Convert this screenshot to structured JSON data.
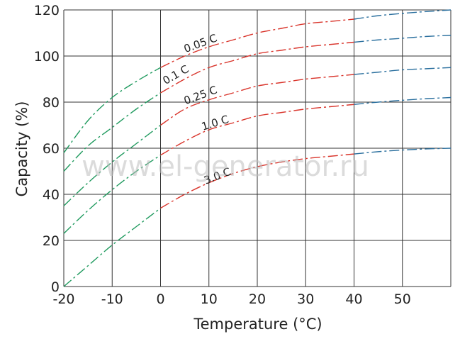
{
  "chart_data": {
    "type": "line",
    "title": "",
    "xlabel": "Temperature (°C)",
    "ylabel": "Capacity (%)",
    "xlim": [
      -20,
      60
    ],
    "ylim": [
      0,
      120
    ],
    "x_ticks": [
      "-20",
      "-10",
      "0",
      "10",
      "20",
      "30",
      "40",
      "50"
    ],
    "y_ticks": [
      "0",
      "20",
      "40",
      "60",
      "80",
      "100",
      "120"
    ],
    "grid": true,
    "line_style": "dash-dot",
    "segment_colors": {
      "low_temperature": "#1f9a5e",
      "mid_temperature": "#d9342b",
      "high_temperature": "#2a6f9e"
    },
    "segment_ranges_celsius": {
      "low_temperature": [
        -20,
        0
      ],
      "mid_temperature": [
        0,
        40
      ],
      "high_temperature": [
        40,
        60
      ]
    },
    "series": [
      {
        "name": "0.05 C",
        "x": [
          -20,
          -15,
          -10,
          -5,
          0,
          5,
          10,
          15,
          20,
          25,
          30,
          35,
          40,
          45,
          50,
          55,
          60
        ],
        "y": [
          58,
          72,
          82,
          89,
          95,
          100,
          104,
          107,
          110,
          112,
          114,
          115,
          116,
          117.5,
          118.5,
          119.3,
          120
        ]
      },
      {
        "name": "0.1 C",
        "x": [
          -20,
          -15,
          -10,
          -5,
          0,
          5,
          10,
          15,
          20,
          25,
          30,
          35,
          40,
          45,
          50,
          55,
          60
        ],
        "y": [
          50,
          61,
          69,
          77,
          84,
          90,
          95,
          98,
          101,
          102.5,
          104,
          105,
          106,
          107,
          107.7,
          108.5,
          109
        ]
      },
      {
        "name": "0.25 C",
        "x": [
          -20,
          -15,
          -10,
          -5,
          0,
          5,
          10,
          15,
          20,
          25,
          30,
          35,
          40,
          45,
          50,
          55,
          60
        ],
        "y": [
          35,
          45,
          54,
          62,
          70,
          77,
          81,
          84,
          87,
          88.5,
          90,
          91,
          92,
          93,
          94,
          94.5,
          95
        ]
      },
      {
        "name": "1.0 C",
        "x": [
          -20,
          -15,
          -10,
          -5,
          0,
          5,
          10,
          15,
          20,
          25,
          30,
          35,
          40,
          45,
          50,
          55,
          60
        ],
        "y": [
          23,
          33,
          42,
          50,
          57,
          63,
          68,
          71,
          74,
          75.5,
          77,
          78,
          79,
          80,
          80.8,
          81.5,
          82
        ]
      },
      {
        "name": "3.0 C",
        "x": [
          -20,
          -15,
          -10,
          -5,
          0,
          5,
          10,
          15,
          20,
          25,
          30,
          35,
          40,
          45,
          50,
          55,
          60
        ],
        "y": [
          0,
          9,
          18,
          26,
          34,
          40,
          45,
          49,
          52,
          54,
          55.5,
          56.5,
          57.5,
          58.5,
          59.2,
          59.7,
          60
        ]
      }
    ],
    "curve_label_positions": [
      {
        "series": "0.05 C",
        "x": 8.5,
        "y": 104
      },
      {
        "series": "0.1 C",
        "x": 3.5,
        "y": 90.5
      },
      {
        "series": "0.25 C",
        "x": 8.5,
        "y": 81.5
      },
      {
        "series": "1.0 C",
        "x": 11.5,
        "y": 69.5
      },
      {
        "series": "3.0 C",
        "x": 12,
        "y": 46.5
      }
    ],
    "watermark": "www.el-generator.ru"
  }
}
